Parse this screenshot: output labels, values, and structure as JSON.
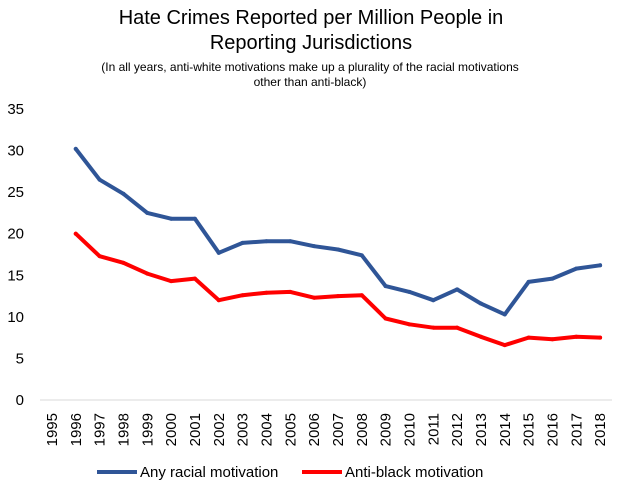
{
  "chart_data": {
    "type": "line",
    "title_line1": "Hate Crimes Reported per Million People in",
    "title_line2": "Reporting Jurisdictions",
    "subtitle_line1": "(In all years, anti-white motivations make up a plurality of the racial motivations",
    "subtitle_line2": "other than anti-black)",
    "xlabel": "",
    "ylabel": "",
    "x": [
      "1995",
      "1996",
      "1997",
      "1998",
      "1999",
      "2000",
      "2001",
      "2002",
      "2003",
      "2004",
      "2005",
      "2006",
      "2007",
      "2008",
      "2009",
      "2010",
      "2011",
      "2012",
      "2013",
      "2014",
      "2015",
      "2016",
      "2017",
      "2018"
    ],
    "ylim": [
      0,
      35
    ],
    "yticks": [
      0,
      5,
      10,
      15,
      20,
      25,
      30,
      35
    ],
    "grid": false,
    "legend_position": "bottom",
    "series": [
      {
        "name": "Any racial motivation",
        "color": "#2f5597",
        "values": [
          null,
          30.2,
          26.5,
          24.8,
          22.5,
          21.8,
          21.8,
          17.7,
          18.9,
          19.1,
          19.1,
          18.5,
          18.1,
          17.4,
          13.7,
          13.0,
          12.0,
          13.3,
          11.6,
          10.3,
          14.2,
          14.6,
          15.8,
          16.2
        ]
      },
      {
        "name": "Anti-black motivation",
        "color": "#ff0000",
        "values": [
          null,
          20.0,
          17.3,
          16.5,
          15.2,
          14.3,
          14.6,
          12.0,
          12.6,
          12.9,
          13.0,
          12.3,
          12.5,
          12.6,
          9.8,
          9.1,
          8.7,
          8.7,
          7.6,
          6.6,
          7.5,
          7.3,
          7.6,
          7.5
        ]
      }
    ]
  }
}
